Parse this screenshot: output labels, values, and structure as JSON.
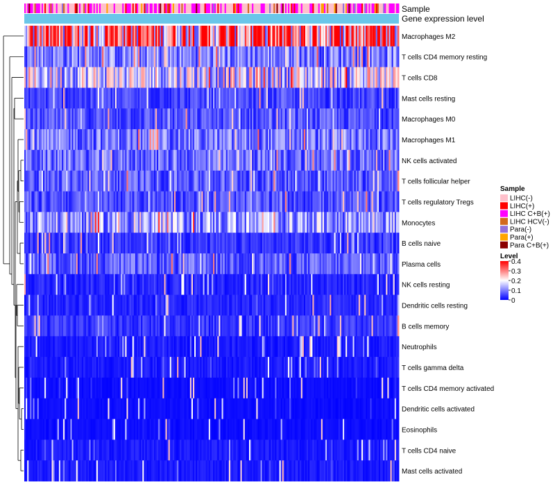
{
  "chart_data": {
    "type": "heatmap",
    "title": "",
    "annotation_tracks": [
      {
        "name": "Sample",
        "legend_title": "Sample"
      },
      {
        "name": "Gene expression level",
        "color": "#6ac6e9"
      }
    ],
    "rows": [
      "Macrophages M2",
      "T cells CD4 memory resting",
      "T cells CD8",
      "Mast cells resting",
      "Macrophages M0",
      "Macrophages M1",
      "NK cells activated",
      "T cells follicular helper",
      "T cells regulatory  Tregs",
      "Monocytes",
      "B cells naive",
      "Plasma cells",
      "NK cells resting",
      "Dendritic cells resting",
      "B cells memory",
      "Neutrophils",
      "T cells gamma delta",
      "T cells CD4 memory activated",
      "Dendritic cells activated",
      "Eosinophils",
      "T cells CD4 naive",
      "Mast cells activated"
    ],
    "row_mean_level": [
      0.3,
      0.1,
      0.17,
      0.05,
      0.06,
      0.09,
      0.08,
      0.07,
      0.06,
      0.12,
      0.04,
      0.07,
      0.03,
      0.03,
      0.04,
      0.02,
      0.02,
      0.01,
      0.01,
      0.01,
      0.02,
      0.02
    ],
    "n_samples": 260,
    "sample_legend": {
      "title": "Sample",
      "items": [
        {
          "label": "LIHC(-)",
          "color": "#ffc0cb"
        },
        {
          "label": "LIHC(+)",
          "color": "#ff0000"
        },
        {
          "label": "LIHC C+B(+)",
          "color": "#ff00ff"
        },
        {
          "label": "LIHC HCV(-)",
          "color": "#d2691e"
        },
        {
          "label": "Para(-)",
          "color": "#9370db"
        },
        {
          "label": "Para(+)",
          "color": "#ffa500"
        },
        {
          "label": "Para C+B(+)",
          "color": "#8b0000"
        }
      ]
    },
    "level_legend": {
      "title": "Level",
      "ticks": [
        "0.4",
        "0.3",
        "0.2",
        "0.1",
        "0"
      ],
      "tick_values": [
        0.4,
        0.3,
        0.2,
        0.1,
        0
      ],
      "range": [
        0,
        0.4
      ],
      "colors": {
        "low": "#0000ff",
        "mid": "#ffffff",
        "high": "#ff0000"
      }
    },
    "dendrogram": "row clustering (left side)"
  }
}
